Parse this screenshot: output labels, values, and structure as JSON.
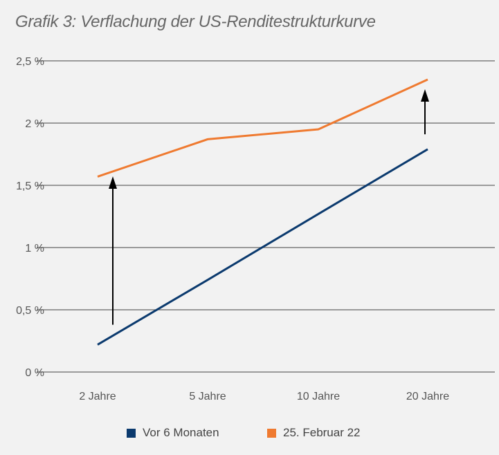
{
  "chart_data": {
    "type": "line",
    "title": "Grafik 3: Verflachung der US-Renditestrukturkurve",
    "xlabel": "",
    "ylabel": "",
    "categories": [
      "2 Jahre",
      "5 Jahre",
      "10 Jahre",
      "20 Jahre"
    ],
    "ylim": [
      0,
      2.5
    ],
    "yticks": [
      0,
      0.5,
      1,
      1.5,
      2,
      2.5
    ],
    "ytick_labels": [
      "0 %",
      "0,5 %",
      "1 %",
      "1,5 %",
      "2 %",
      "2,5 %"
    ],
    "grid": true,
    "legend_position": "bottom",
    "series": [
      {
        "name": "Vor 6 Monaten",
        "color": "#0b3a6e",
        "values": [
          0.22,
          0.74,
          1.27,
          1.79
        ]
      },
      {
        "name": "25. Februar 22",
        "color": "#ef7a30",
        "values": [
          1.57,
          1.87,
          1.95,
          2.35
        ]
      }
    ],
    "annotations": [
      {
        "type": "arrow",
        "category": "2 Jahre",
        "from": 0.38,
        "to": 1.55
      },
      {
        "type": "arrow",
        "category": "20 Jahre",
        "from": 1.91,
        "to": 2.25
      }
    ]
  }
}
